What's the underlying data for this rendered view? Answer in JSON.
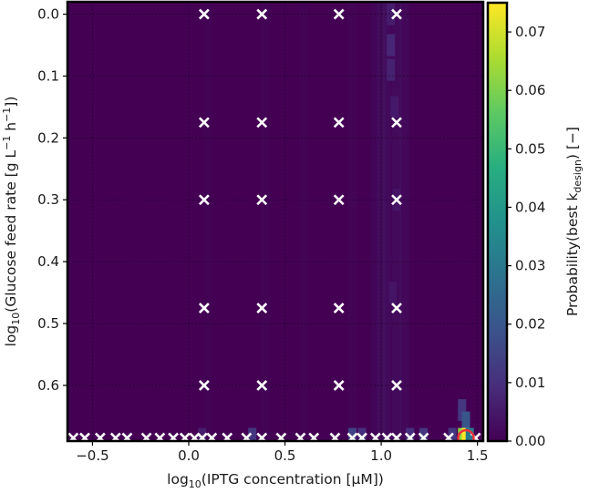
{
  "chart_data": {
    "type": "heatmap",
    "xlabel": {
      "pre": "log",
      "sub": "10",
      "post": "(IPTG concentration [μM])"
    },
    "ylabel": {
      "pre": "log",
      "sub": "10",
      "mid": "(Glucose feed rate [g L",
      "sup1": "−1",
      "mid2": " h",
      "sup2": "−1",
      "post": "])"
    },
    "colorbar_label": {
      "pre": "Probability(best k",
      "sub": "design",
      "post": ") [−]"
    },
    "xlim": [
      -0.63,
      1.53
    ],
    "ylim": [
      0.69,
      -0.02
    ],
    "xticks": [
      -0.5,
      0.0,
      0.5,
      1.0,
      1.5
    ],
    "xtick_labels": [
      "−0.5",
      "0.0",
      "0.5",
      "1.0",
      "1.5"
    ],
    "yticks": [
      0.0,
      0.1,
      0.2,
      0.3,
      0.4,
      0.5,
      0.6
    ],
    "ytick_labels": [
      "0.0",
      "0.1",
      "0.2",
      "0.3",
      "0.4",
      "0.5",
      "0.6"
    ],
    "colorbar": {
      "range": [
        0.0,
        0.075
      ],
      "ticks": [
        0.0,
        0.01,
        0.02,
        0.03,
        0.04,
        0.05,
        0.06,
        0.07
      ],
      "tick_labels": [
        "0.00",
        "0.01",
        "0.02",
        "0.03",
        "0.04",
        "0.05",
        "0.06",
        "0.07"
      ],
      "colormap": "viridis"
    },
    "grid": true,
    "hot_spots": [
      {
        "x": 1.05,
        "y": 0.0,
        "value": 0.006
      },
      {
        "x": 1.05,
        "y": 0.05,
        "value": 0.008
      },
      {
        "x": 1.05,
        "y": 0.09,
        "value": 0.007
      },
      {
        "x": 1.07,
        "y": 0.15,
        "value": 0.005
      },
      {
        "x": 1.08,
        "y": 0.3,
        "value": 0.004
      },
      {
        "x": 1.06,
        "y": 0.45,
        "value": 0.004
      },
      {
        "x": 1.42,
        "y": 0.64,
        "value": 0.012
      },
      {
        "x": 1.44,
        "y": 0.66,
        "value": 0.02
      },
      {
        "x": 1.42,
        "y": 0.685,
        "value": 0.062
      },
      {
        "x": 1.44,
        "y": 0.685,
        "value": 0.075
      },
      {
        "x": 1.46,
        "y": 0.685,
        "value": 0.03
      },
      {
        "x": 0.33,
        "y": 0.685,
        "value": 0.012
      },
      {
        "x": 0.85,
        "y": 0.685,
        "value": 0.015
      },
      {
        "x": 0.9,
        "y": 0.685,
        "value": 0.01
      },
      {
        "x": 1.15,
        "y": 0.685,
        "value": 0.01
      },
      {
        "x": 1.22,
        "y": 0.685,
        "value": 0.012
      },
      {
        "x": 1.37,
        "y": 0.685,
        "value": 0.012
      },
      {
        "x": 0.07,
        "y": 0.685,
        "value": 0.006
      }
    ],
    "design_points": {
      "grid_x": [
        0.08,
        0.38,
        0.78,
        1.08
      ],
      "grid_y": [
        0.0,
        0.175,
        0.3,
        0.475,
        0.6
      ],
      "bottom_row_y": 0.685,
      "bottom_row_x": [
        -0.6,
        -0.54,
        -0.46,
        -0.38,
        -0.32,
        -0.22,
        -0.15,
        -0.08,
        -0.02,
        0.03,
        0.07,
        0.12,
        0.2,
        0.3,
        0.38,
        0.48,
        0.58,
        0.65,
        0.76,
        0.85,
        0.9,
        0.97,
        1.03,
        1.08,
        1.15,
        1.22,
        1.35,
        1.49
      ]
    },
    "best_point": {
      "x": 1.44,
      "y": 0.685,
      "marker_color": "#e8343a"
    },
    "marker_color": "#ffffff"
  }
}
